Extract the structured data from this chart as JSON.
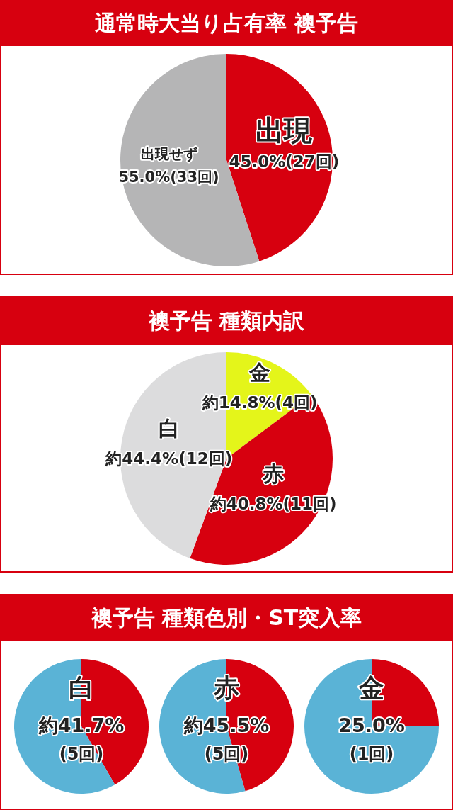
{
  "chart_data": [
    {
      "type": "pie",
      "title": "通常時大当り占有率 襖予告",
      "categories": [
        "出現",
        "出現せず"
      ],
      "values": [
        45.0,
        55.0
      ],
      "colors": [
        "#d7000f",
        "#b5b5b6"
      ],
      "value_labels": [
        "45.0%(27回)",
        "55.0%(33回)"
      ]
    },
    {
      "type": "pie",
      "title": "襖予告 種類内訳",
      "categories": [
        "金",
        "赤",
        "白"
      ],
      "values": [
        14.8,
        40.8,
        44.4
      ],
      "colors": [
        "#e4f51a",
        "#d7000f",
        "#dcdcdd"
      ],
      "value_labels": [
        "約14.8%(4回)",
        "約40.8%(11回)",
        "約44.4%(12回)"
      ]
    },
    {
      "type": "pie",
      "title": "襖予告 種類色別・ST突入率",
      "categories": [
        "白",
        null
      ],
      "values": [
        41.7,
        58.3
      ],
      "colors": [
        "#d7000f",
        "#5ab3d6"
      ],
      "value_labels": [
        "約41.7%\n(5回)",
        null
      ]
    },
    {
      "type": "pie",
      "categories": [
        "赤",
        null
      ],
      "values": [
        45.5,
        54.5
      ],
      "colors": [
        "#d7000f",
        "#5ab3d6"
      ],
      "value_labels": [
        "約45.5%\n(5回)",
        null
      ]
    },
    {
      "type": "pie",
      "categories": [
        "金",
        null
      ],
      "values": [
        25.0,
        75.0
      ],
      "colors": [
        "#d7000f",
        "#5ab3d6"
      ],
      "value_labels": [
        "25.0%\n(1回)",
        null
      ]
    }
  ]
}
